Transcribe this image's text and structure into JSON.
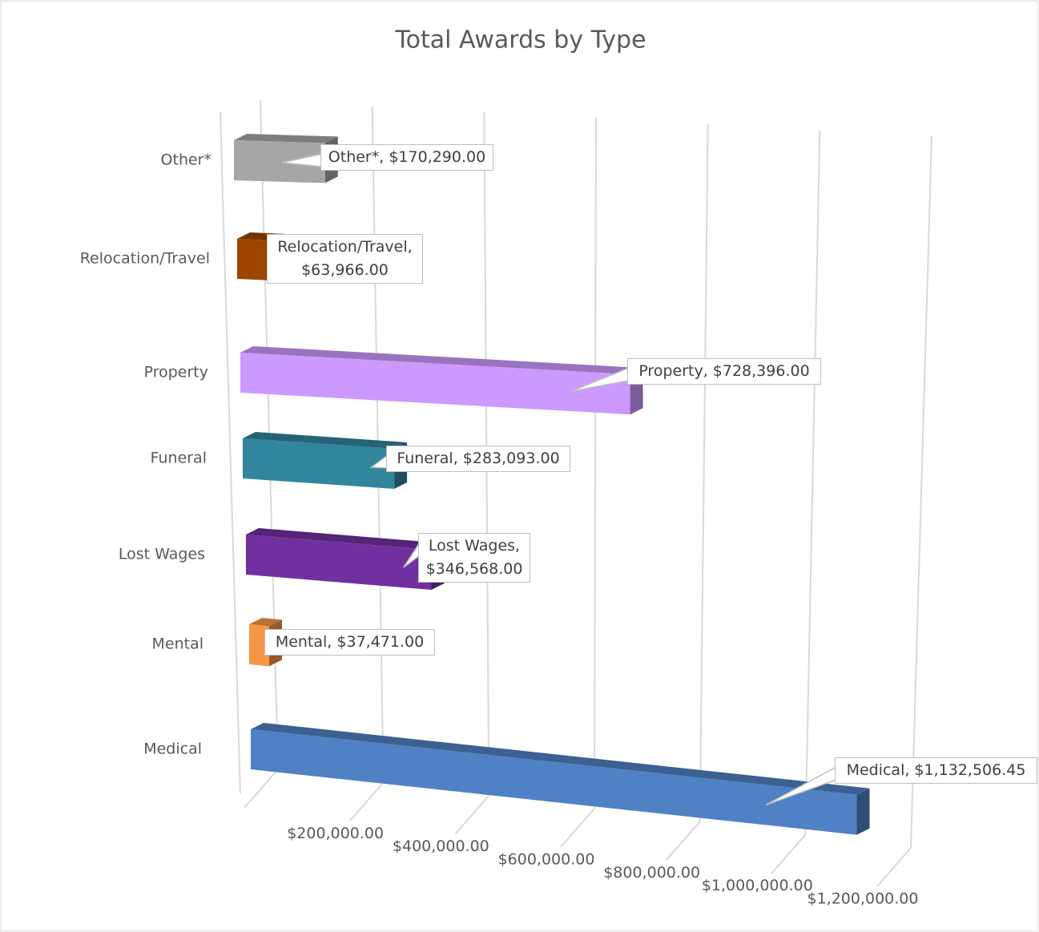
{
  "chart_data": {
    "type": "bar3d",
    "title": "Total Awards by Type",
    "categories": [
      "Medical",
      "Mental",
      "Lost Wages",
      "Funeral",
      "Property",
      "Relocation/Travel",
      "Other*"
    ],
    "values": [
      1132506.45,
      37471,
      346568,
      283093,
      728396,
      63966,
      170290
    ],
    "value_labels": [
      "Medical,  $1,132,506.45",
      "Mental,  $37,471.00",
      "Lost Wages, $346,568.00",
      "Funeral,  $283,093.00",
      "Property,  $728,396.00",
      "Relocation/Travel, $63,966.00",
      "Other*,  $170,290.00"
    ],
    "colors": [
      "#4f81c4",
      "#f79646",
      "#7030a0",
      "#31859c",
      "#cc99ff",
      "#9c4400",
      "#a6a6a6"
    ],
    "xlim": [
      0,
      1200000
    ],
    "xticks": [
      {
        "value": 200000,
        "label": "$200,000.00"
      },
      {
        "value": 400000,
        "label": "$400,000.00"
      },
      {
        "value": 600000,
        "label": "$600,000.00"
      },
      {
        "value": 800000,
        "label": "$800,000.00"
      },
      {
        "value": 1000000,
        "label": "$1,000,000.00"
      },
      {
        "value": 1200000,
        "label": "$1,200,000.00"
      }
    ],
    "grid": true
  }
}
